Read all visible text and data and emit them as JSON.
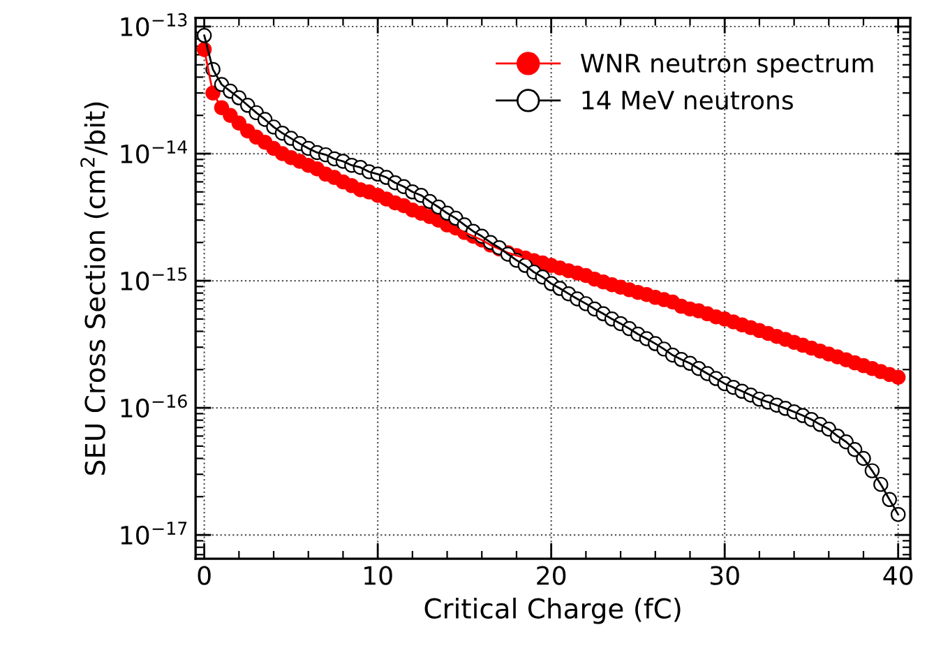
{
  "chart_data": {
    "type": "line",
    "xlabel": "Critical Charge (fC)",
    "ylabel": "SEU Cross Section (cm$^{2}$/bit)",
    "log": "y",
    "grid": true,
    "legend": "top right",
    "marker": "circle",
    "line_style": "solid",
    "xlim": [
      -0.5,
      40.7
    ],
    "xticks": [
      0,
      10,
      20,
      30,
      40
    ],
    "ylim": [
      6.5e-18,
      1.17e-13
    ],
    "yticks": [
      {
        "value": 1e-17,
        "label": "10$^{−17}$"
      },
      {
        "value": 1e-16,
        "label": "10$^{−16}$"
      },
      {
        "value": 1e-15,
        "label": "10$^{−15}$"
      },
      {
        "value": 1e-14,
        "label": "10$^{−14}$"
      },
      {
        "value": 1e-13,
        "label": "10$^{−13}$"
      }
    ],
    "x": [
      0,
      0.5,
      1,
      1.5,
      2,
      2.5,
      3,
      3.5,
      4,
      4.5,
      5,
      5.5,
      6,
      6.5,
      7,
      7.5,
      8,
      8.5,
      9,
      9.5,
      10,
      10.5,
      11,
      11.5,
      12,
      12.5,
      13,
      13.5,
      14,
      14.5,
      15,
      15.5,
      16,
      16.5,
      17,
      17.5,
      18,
      18.5,
      19,
      19.5,
      20,
      20.5,
      21,
      21.5,
      22,
      22.5,
      23,
      23.5,
      24,
      24.5,
      25,
      25.5,
      26,
      26.5,
      27,
      27.5,
      28,
      28.5,
      29,
      29.5,
      30,
      30.5,
      31,
      31.5,
      32,
      32.5,
      33,
      33.5,
      34,
      34.5,
      35,
      35.5,
      36,
      36.5,
      37,
      37.5,
      38,
      38.5,
      39,
      39.5,
      40
    ],
    "series": [
      {
        "name": "WNR neutron spectrum",
        "color": "#ff0000",
        "values": [
          6.6e-14,
          3e-14,
          2.3e-14,
          2e-14,
          1.74e-14,
          1.51e-14,
          1.35e-14,
          1.23e-14,
          1.1e-14,
          1e-14,
          9.3e-15,
          8.7e-15,
          8.1e-15,
          7.6e-15,
          6.9e-15,
          6.5e-15,
          6e-15,
          5.6e-15,
          5.2e-15,
          5e-15,
          4.7e-15,
          4.4e-15,
          4.1e-15,
          3.9e-15,
          3.6e-15,
          3.4e-15,
          3.2e-15,
          3e-15,
          2.75e-15,
          2.6e-15,
          2.4e-15,
          2.24e-15,
          2.09e-15,
          1.91e-15,
          1.78e-15,
          1.66e-15,
          1.58e-15,
          1.51e-15,
          1.44e-15,
          1.38e-15,
          1.32e-15,
          1.26e-15,
          1.2e-15,
          1.15e-15,
          1.1e-15,
          1.03e-15,
          9.8e-16,
          9.3e-16,
          8.9e-16,
          8.5e-16,
          8.1e-16,
          7.8e-16,
          7.4e-16,
          7.1e-16,
          6.8e-16,
          6.3e-16,
          6e-16,
          5.8e-16,
          5.5e-16,
          5.2e-16,
          5e-16,
          4.75e-16,
          4.5e-16,
          4.28e-16,
          4.06e-16,
          3.85e-16,
          3.65e-16,
          3.46e-16,
          3.28e-16,
          3.11e-16,
          2.95e-16,
          2.8e-16,
          2.65e-16,
          2.52e-16,
          2.39e-16,
          2.26e-16,
          2.15e-16,
          2.04e-16,
          1.93e-16,
          1.83e-16,
          1.74e-16
        ]
      },
      {
        "name": "14 MeV neutrons",
        "color": "#000000",
        "values": [
          8.5e-14,
          4.6e-14,
          3.5e-14,
          3.1e-14,
          2.75e-14,
          2.4e-14,
          2.1e-14,
          1.86e-14,
          1.62e-14,
          1.45e-14,
          1.32e-14,
          1.2e-14,
          1.1e-14,
          1.02e-14,
          9.8e-15,
          9.1e-15,
          8.7e-15,
          8.1e-15,
          7.8e-15,
          7.2e-15,
          6.9e-15,
          6.5e-15,
          5.9e-15,
          5.5e-15,
          5e-15,
          4.7e-15,
          4.2e-15,
          3.8e-15,
          3.4e-15,
          3.1e-15,
          2.75e-15,
          2.45e-15,
          2.24e-15,
          2e-15,
          1.82e-15,
          1.62e-15,
          1.45e-15,
          1.32e-15,
          1.17e-15,
          1.07e-15,
          9.5e-16,
          8.7e-16,
          7.9e-16,
          7.2e-16,
          6.6e-16,
          6e-16,
          5.5e-16,
          5e-16,
          4.6e-16,
          4.2e-16,
          3.8e-16,
          3.5e-16,
          3.2e-16,
          2.9e-16,
          2.6e-16,
          2.4e-16,
          2.24e-16,
          2.04e-16,
          1.86e-16,
          1.7e-16,
          1.55e-16,
          1.45e-16,
          1.35e-16,
          1.26e-16,
          1.17e-16,
          1.11e-16,
          1.05e-16,
          9.9e-17,
          9.3e-17,
          8.7e-17,
          8.1e-17,
          7.4e-17,
          6.8e-17,
          6e-17,
          5.4e-17,
          4.7e-17,
          4e-17,
          3.2e-17,
          2.5e-17,
          1.9e-17,
          1.45e-17
        ]
      }
    ]
  }
}
